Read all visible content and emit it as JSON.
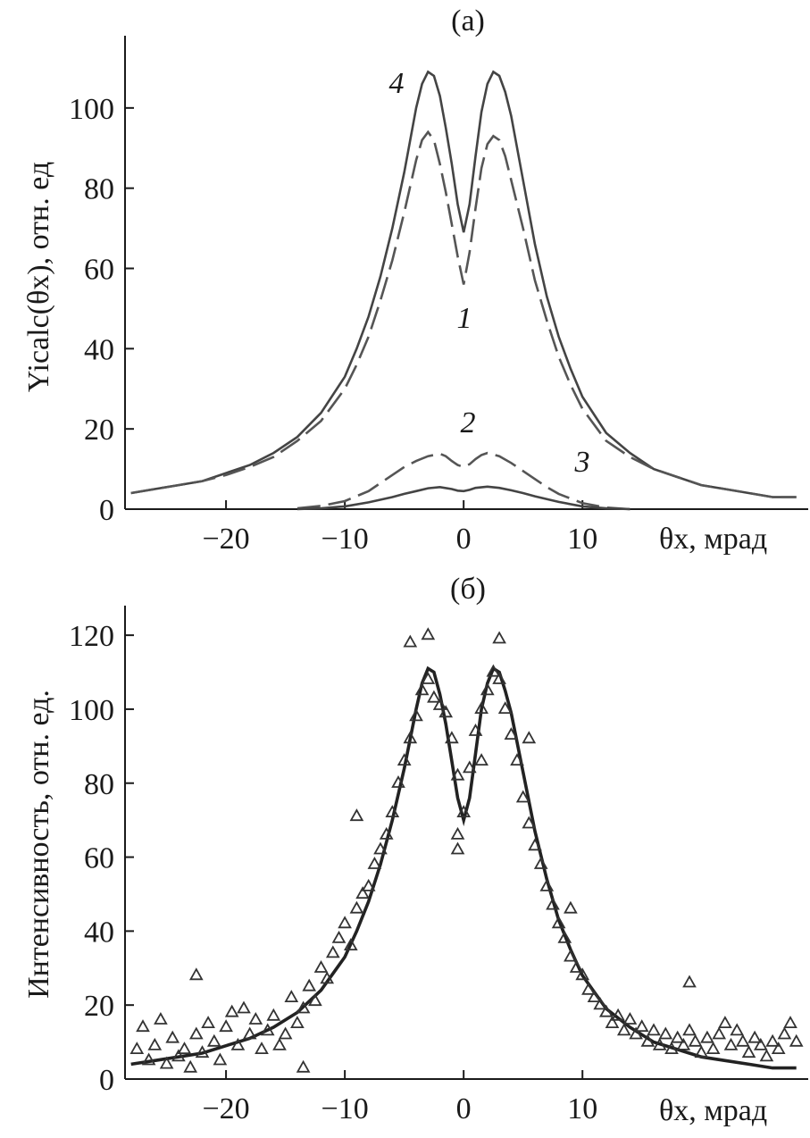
{
  "chart_data": [
    {
      "panel": "(a)",
      "type": "line",
      "title": "(a)",
      "xlabel": "θx, мрад",
      "ylabel": "Yicalc(θx), отн. ед",
      "xlim": [
        -28.5,
        29
      ],
      "ylim": [
        0,
        118
      ],
      "xticks": [
        -20,
        -10,
        0,
        10
      ],
      "yticks": [
        0,
        20,
        40,
        60,
        80,
        100
      ],
      "tick_labels_x": [
        "−20",
        "−10",
        "0",
        "10"
      ],
      "tick_labels_y": [
        "0",
        "20",
        "40",
        "60",
        "80",
        "100"
      ],
      "grid": false,
      "series": [
        {
          "name": "4",
          "style": "solid",
          "x": [
            -28,
            -26,
            -24,
            -22,
            -20,
            -18,
            -16,
            -14,
            -12,
            -10,
            -9,
            -8,
            -7,
            -6,
            -5,
            -4,
            -3.5,
            -3,
            -2.5,
            -2,
            -1.5,
            -1,
            -0.5,
            0,
            0.5,
            1,
            1.5,
            2,
            2.5,
            3,
            3.5,
            4,
            5,
            6,
            7,
            8,
            9,
            10,
            12,
            14,
            16,
            18,
            20,
            22,
            24,
            26,
            28
          ],
          "y": [
            4,
            5,
            6,
            7,
            9,
            11,
            14,
            18,
            24,
            33,
            40,
            48,
            58,
            70,
            84,
            100,
            106,
            109,
            108,
            103,
            95,
            86,
            76,
            69,
            76,
            88,
            99,
            106,
            109,
            108,
            104,
            98,
            82,
            66,
            53,
            43,
            35,
            28,
            19,
            14,
            10,
            8,
            6,
            5,
            4,
            3,
            3
          ]
        },
        {
          "name": "1",
          "style": "dashed",
          "x": [
            -28,
            -26,
            -24,
            -22,
            -20,
            -18,
            -16,
            -14,
            -12,
            -10,
            -9,
            -8,
            -7,
            -6,
            -5,
            -4,
            -3.5,
            -3,
            -2.5,
            -2,
            -1.5,
            -1,
            -0.5,
            0,
            0.5,
            1,
            1.5,
            2,
            2.5,
            3,
            3.5,
            4,
            5,
            6,
            7,
            8,
            9,
            10,
            12,
            14,
            16,
            18,
            20,
            22,
            24,
            26,
            28
          ],
          "y": [
            4,
            5,
            6,
            7,
            8.5,
            10.5,
            13,
            17,
            22,
            30,
            36,
            43,
            52,
            62,
            74,
            87,
            92,
            94,
            92,
            86,
            79,
            71,
            63,
            56,
            64,
            75,
            85,
            91,
            93,
            92,
            88,
            82,
            70,
            57,
            47,
            38,
            31,
            25,
            17,
            13,
            10,
            8,
            6,
            5,
            4,
            3,
            3
          ]
        },
        {
          "name": "2",
          "style": "dashed",
          "x": [
            -14,
            -12,
            -10,
            -8,
            -7,
            -6,
            -5,
            -4,
            -3,
            -2,
            -1.5,
            -1,
            -0.5,
            0,
            0.5,
            1,
            1.5,
            2,
            3,
            4,
            5,
            6,
            7,
            8,
            10,
            12,
            14
          ],
          "y": [
            0.2,
            0.8,
            2,
            4.5,
            6.5,
            8.5,
            10.5,
            12,
            13.2,
            13.8,
            13.2,
            12,
            11,
            10.5,
            11.2,
            12.5,
            13.5,
            14,
            13.2,
            11.5,
            9.5,
            7.5,
            5.5,
            3.8,
            1.5,
            0.4,
            0
          ]
        },
        {
          "name": "3",
          "style": "solid",
          "x": [
            -14,
            -12,
            -10,
            -8,
            -6,
            -5,
            -4,
            -3,
            -2,
            -1,
            -0.5,
            0,
            0.5,
            1,
            2,
            3,
            4,
            5,
            6,
            8,
            10,
            12,
            14
          ],
          "y": [
            0,
            0.2,
            0.7,
            1.7,
            3,
            3.8,
            4.5,
            5.2,
            5.5,
            5,
            4.6,
            4.5,
            4.8,
            5.3,
            5.6,
            5.3,
            4.7,
            4,
            3.2,
            1.8,
            0.7,
            0.2,
            0
          ]
        }
      ],
      "curve_labels": [
        "4",
        "1",
        "2",
        "3"
      ]
    },
    {
      "panel": "(б)",
      "type": "scatter",
      "title": "(б)",
      "xlabel": "θx, мрад",
      "ylabel": "Интенсивность, отн. ед.",
      "xlim": [
        -28.5,
        29
      ],
      "ylim": [
        0,
        128
      ],
      "xticks": [
        -20,
        -10,
        0,
        10
      ],
      "yticks": [
        0,
        20,
        40,
        60,
        80,
        100,
        120
      ],
      "tick_labels_x": [
        "−20",
        "−10",
        "0",
        "10"
      ],
      "tick_labels_y": [
        "0",
        "20",
        "40",
        "60",
        "80",
        "100",
        "120"
      ],
      "grid": false,
      "fit": {
        "x": [
          -28,
          -26,
          -24,
          -22,
          -20,
          -18,
          -16,
          -14,
          -12,
          -10,
          -9,
          -8,
          -7,
          -6,
          -5,
          -4,
          -3.5,
          -3,
          -2.5,
          -2,
          -1.5,
          -1,
          -0.5,
          0,
          0.5,
          1,
          1.5,
          2,
          2.5,
          3,
          3.5,
          4,
          5,
          6,
          7,
          8,
          9,
          10,
          12,
          14,
          16,
          18,
          20,
          22,
          24,
          26,
          28
        ],
        "y": [
          4,
          5,
          6,
          7,
          9,
          11,
          14,
          18,
          24,
          33,
          40,
          48,
          58,
          70,
          84,
          100,
          107,
          111,
          110,
          104,
          96,
          86,
          76,
          70,
          76,
          88,
          100,
          107,
          111,
          110,
          105,
          99,
          83,
          67,
          54,
          43,
          35,
          28,
          19,
          14,
          10,
          8,
          6,
          5,
          4,
          3,
          3
        ]
      },
      "points": {
        "x": [
          -27.5,
          -27,
          -26.5,
          -26,
          -25.5,
          -25,
          -24.5,
          -24,
          -23.5,
          -23,
          -22.5,
          -22,
          -21.5,
          -21,
          -20.5,
          -20,
          -19.5,
          -19,
          -18.5,
          -18,
          -17.5,
          -17,
          -16.5,
          -16,
          -15.5,
          -15,
          -14.5,
          -14,
          -13.5,
          -13,
          -12.5,
          -12,
          -11.5,
          -11,
          -10.5,
          -10,
          -9.5,
          -9,
          -8.5,
          -8,
          -7.5,
          -7,
          -6.5,
          -6,
          -5.5,
          -5,
          -4.5,
          -4,
          -3.5,
          -3,
          -2.5,
          -2,
          -1.5,
          -1,
          -0.5,
          0,
          0.5,
          1,
          1.5,
          2,
          2.5,
          3,
          3.5,
          4,
          4.5,
          5,
          5.5,
          6,
          6.5,
          7,
          7.5,
          8,
          8.5,
          9,
          9.5,
          10,
          10.5,
          11,
          11.5,
          12,
          12.5,
          13,
          13.5,
          14,
          14.5,
          15,
          15.5,
          16,
          16.5,
          17,
          17.5,
          18,
          18.5,
          19,
          19.5,
          20,
          20.5,
          21,
          21.5,
          22,
          22.5,
          23,
          23.5,
          24,
          24.5,
          25,
          25.5,
          26,
          26.5,
          27,
          27.5,
          28,
          -22.5,
          -4.5,
          -3,
          3,
          5.5,
          -13.5,
          19,
          -0.5,
          -0.5,
          1.5,
          -9,
          9
        ],
        "y": [
          8,
          14,
          5,
          9,
          16,
          4,
          11,
          6,
          8,
          3,
          12,
          7,
          15,
          10,
          5,
          14,
          18,
          9,
          19,
          12,
          16,
          8,
          13,
          17,
          9,
          12,
          22,
          15,
          19,
          25,
          21,
          30,
          27,
          34,
          38,
          42,
          36,
          46,
          50,
          52,
          58,
          62,
          66,
          72,
          80,
          86,
          92,
          98,
          105,
          108,
          103,
          101,
          99,
          92,
          82,
          72,
          84,
          94,
          100,
          105,
          110,
          108,
          100,
          93,
          86,
          76,
          69,
          63,
          58,
          52,
          47,
          42,
          38,
          33,
          30,
          28,
          24,
          22,
          20,
          18,
          15,
          17,
          13,
          16,
          12,
          14,
          10,
          13,
          9,
          12,
          8,
          11,
          9,
          13,
          10,
          7,
          11,
          8,
          12,
          15,
          9,
          13,
          10,
          7,
          11,
          9,
          6,
          10,
          8,
          12,
          15,
          10,
          28,
          118,
          120,
          119,
          92,
          3,
          26,
          62,
          66,
          86,
          71,
          46
        ]
      }
    }
  ]
}
